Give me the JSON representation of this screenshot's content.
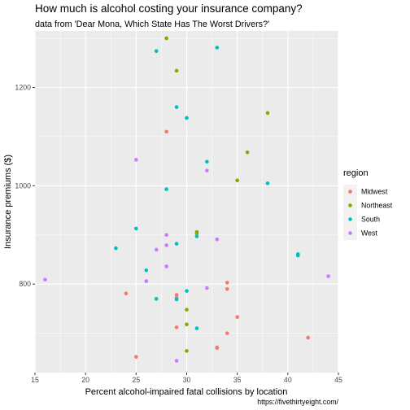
{
  "chart_data": {
    "type": "scatter",
    "title": "How much is alcohol costing your insurance company?",
    "subtitle": "data from 'Dear Mona, Which State Has The Worst Drivers?'",
    "xlabel": "Percent alcohol-impaired fatal collisions by location",
    "ylabel": "Insurance premiums ($)",
    "caption": "https://fivethirtyeight.com/",
    "xlim": [
      15,
      45
    ],
    "ylim": [
      620,
      1315
    ],
    "x_ticks": [
      15,
      20,
      25,
      30,
      35,
      40,
      45
    ],
    "y_ticks": [
      800,
      1000,
      1200
    ],
    "grid": true,
    "legend": {
      "title": "region",
      "position": "right"
    },
    "series": [
      {
        "name": "Midwest",
        "color": "#F8766D",
        "points": [
          [
            28,
            1110
          ],
          [
            24,
            781
          ],
          [
            29,
            778
          ],
          [
            29,
            772
          ],
          [
            34,
            803
          ],
          [
            34,
            790
          ],
          [
            35,
            733
          ],
          [
            29,
            712
          ],
          [
            34,
            700
          ],
          [
            33,
            671
          ],
          [
            33,
            670
          ],
          [
            25,
            652
          ],
          [
            42,
            691
          ]
        ]
      },
      {
        "name": "Northeast",
        "color": "#7CAE00",
        "points": [
          [
            28,
            1300
          ],
          [
            29,
            1234
          ],
          [
            38,
            1148
          ],
          [
            36,
            1068
          ],
          [
            35,
            1011
          ],
          [
            31,
            906
          ],
          [
            31,
            903
          ],
          [
            30,
            748
          ],
          [
            30,
            718
          ],
          [
            30,
            664
          ]
        ]
      },
      {
        "name": "South",
        "color": "#00BFC4",
        "points": [
          [
            27,
            1274
          ],
          [
            33,
            1281
          ],
          [
            29,
            1160
          ],
          [
            30,
            1138
          ],
          [
            32,
            1049
          ],
          [
            28,
            993
          ],
          [
            38,
            1005
          ],
          [
            25,
            913
          ],
          [
            31,
            897
          ],
          [
            29,
            882
          ],
          [
            23,
            873
          ],
          [
            26,
            828
          ],
          [
            41,
            861
          ],
          [
            41,
            858
          ],
          [
            30,
            786
          ],
          [
            27,
            770
          ],
          [
            29,
            769
          ],
          [
            31,
            710
          ]
        ]
      },
      {
        "name": "West",
        "color": "#C77CFF",
        "points": [
          [
            25,
            1053
          ],
          [
            32,
            1031
          ],
          [
            28,
            900
          ],
          [
            33,
            891
          ],
          [
            28,
            879
          ],
          [
            27,
            870
          ],
          [
            28,
            836
          ],
          [
            26,
            806
          ],
          [
            32,
            792
          ],
          [
            16,
            809
          ],
          [
            44,
            816
          ],
          [
            29,
            644
          ]
        ]
      }
    ]
  }
}
